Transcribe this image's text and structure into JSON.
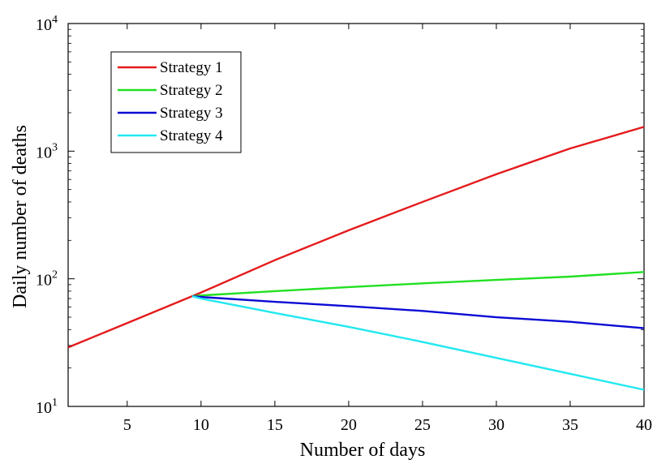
{
  "chart_data": {
    "type": "line",
    "xlabel": "Number of days",
    "ylabel": "Daily number of deaths",
    "xlim": [
      1,
      40
    ],
    "ylim": [
      10,
      10000
    ],
    "yscale": "log",
    "grid": false,
    "legend_position": "top-left",
    "x_ticks": [
      5,
      10,
      15,
      20,
      25,
      30,
      35,
      40
    ],
    "y_ticks": [
      {
        "value": 10,
        "base": "10",
        "exp": "1"
      },
      {
        "value": 100,
        "base": "10",
        "exp": "2"
      },
      {
        "value": 1000,
        "base": "10",
        "exp": "3"
      },
      {
        "value": 10000,
        "base": "10",
        "exp": "4"
      }
    ],
    "series": [
      {
        "name": "Strategy 1",
        "color": "#e41a1c",
        "x": [
          1,
          5,
          9.4,
          10,
          15,
          20,
          25,
          30,
          35,
          40
        ],
        "y": [
          29,
          45,
          73,
          78,
          140,
          240,
          400,
          660,
          1050,
          1550
        ]
      },
      {
        "name": "Strategy 2",
        "color": "#22e022",
        "x": [
          9.4,
          10,
          15,
          20,
          25,
          30,
          35,
          40
        ],
        "y": [
          73,
          74,
          80,
          86,
          92,
          98,
          104,
          113
        ]
      },
      {
        "name": "Strategy 3",
        "color": "#0a0ad4",
        "x": [
          9.4,
          10,
          15,
          20,
          25,
          30,
          35,
          40
        ],
        "y": [
          73,
          72,
          66,
          61,
          56,
          50,
          46,
          41
        ]
      },
      {
        "name": "Strategy 4",
        "color": "#22e8f0",
        "x": [
          9.4,
          10,
          15,
          20,
          25,
          30,
          35,
          40
        ],
        "y": [
          73,
          70,
          54,
          42,
          32,
          24,
          18,
          13.5
        ]
      }
    ]
  }
}
